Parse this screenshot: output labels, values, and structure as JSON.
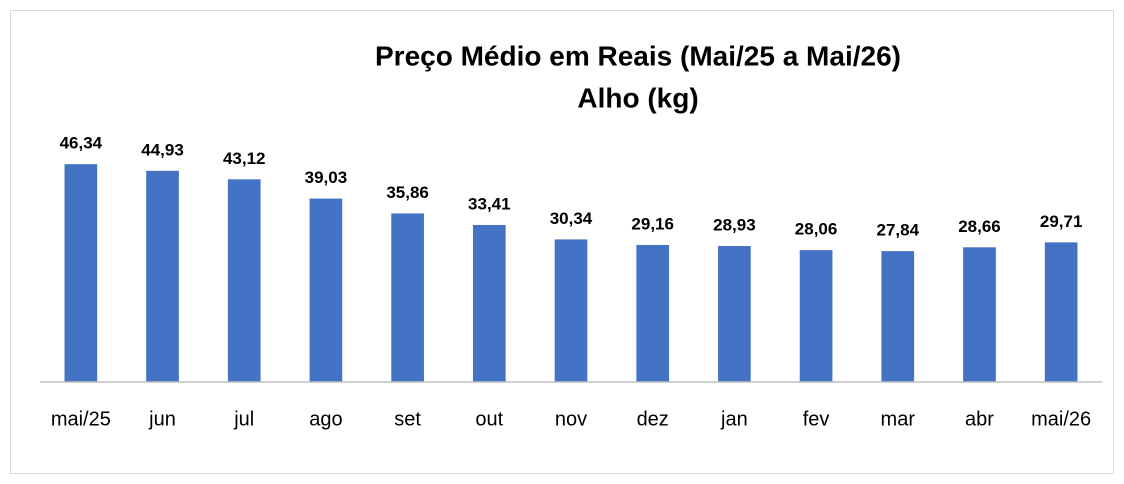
{
  "chart_data": {
    "type": "bar",
    "title": "Preço Médio em Reais (Mai/25 a Mai/26)",
    "subtitle": "Alho (kg)",
    "categories": [
      "mai/25",
      "jun",
      "jul",
      "ago",
      "set",
      "out",
      "nov",
      "dez",
      "jan",
      "fev",
      "mar",
      "abr",
      "mai/26"
    ],
    "values": [
      46.34,
      44.93,
      43.12,
      39.03,
      35.86,
      33.41,
      30.34,
      29.16,
      28.93,
      28.06,
      27.84,
      28.66,
      29.71
    ],
    "value_labels": [
      "46,34",
      "44,93",
      "43,12",
      "39,03",
      "35,86",
      "33,41",
      "30,34",
      "29,16",
      "28,93",
      "28,06",
      "27,84",
      "28,66",
      "29,71"
    ],
    "color": "#4472c4",
    "ylim": [
      0,
      50
    ]
  }
}
